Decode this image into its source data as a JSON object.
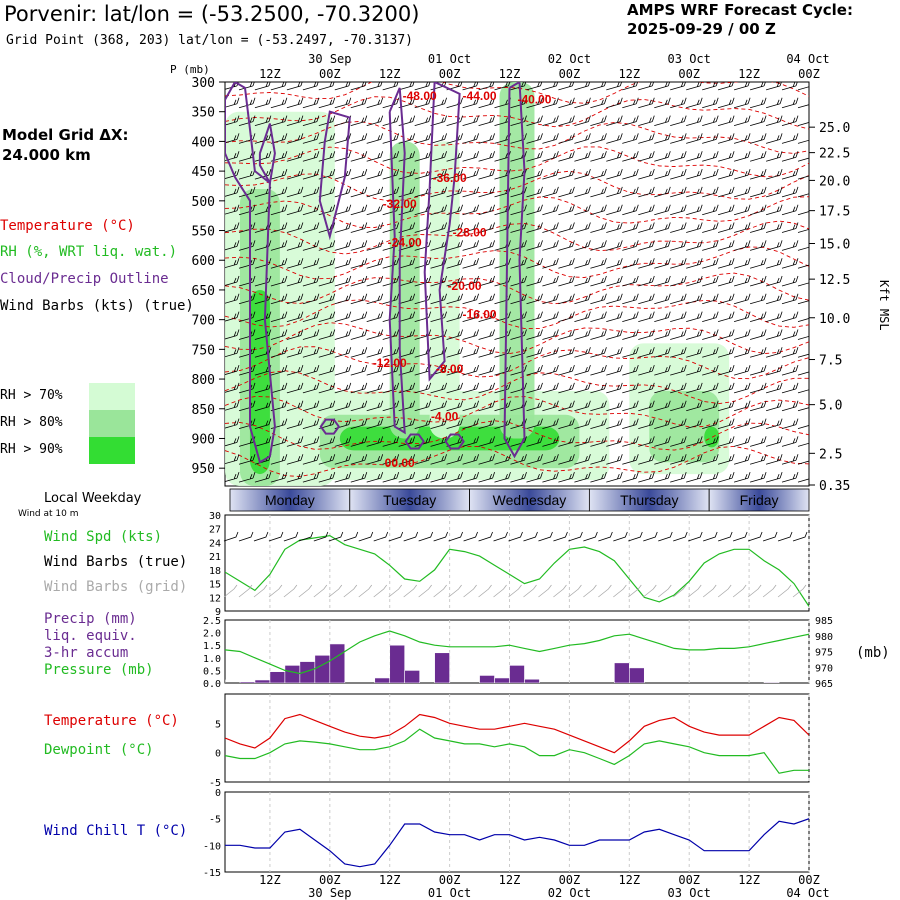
{
  "header": {
    "title": "Porvenir:  lat/lon = (-53.2500, -70.3200)",
    "grid_point": "Grid Point (368, 203) lat/lon = (-53.2497, -70.3137)",
    "cycle_label": "AMPS WRF Forecast Cycle:",
    "cycle_value": "2025-09-29 / 00  Z",
    "grid_dx_label": "Model Grid ΔX:",
    "grid_dx_value": " 24.000 km"
  },
  "legend": {
    "temperature": "Temperature (°C)",
    "rh": "RH (%, WRT liq. wat.)",
    "cloud": "Cloud/Precip Outline",
    "wind": "Wind Barbs (kts) (true)",
    "rh70": "RH > 70%",
    "rh80": "RH > 80%",
    "rh90": "RH > 90%",
    "local_weekday": "Local Weekday",
    "wind_at": "Wind at 10 m",
    "wind_spd": "Wind Spd (kts)",
    "wind_barbs_true": "Wind Barbs (true)",
    "wind_barbs_grid": "Wind Barbs (grid)",
    "precip1": "Precip (mm)",
    "precip2": "liq. equiv.",
    "precip3": "3-hr accum",
    "pressure": "Pressure (mb)",
    "pressure_unit": "(mb)",
    "temp2": "Temperature (°C)",
    "dewpoint": "Dewpoint (°C)",
    "windchill": "Wind Chill T (°C)",
    "kft": "Kft MSL",
    "p_axis_title": "P (mb)"
  },
  "colors": {
    "temperature": "#dd0000",
    "rh": "#22bb22",
    "cloud": "#6a2c91",
    "rh70": "#d4fbd4",
    "rh80": "#9ae59a",
    "rh90": "#33dd33",
    "pressure": "#22bb22",
    "precip": "#6a2c91",
    "windchill": "#0000aa",
    "dayband": "#3a4a9a"
  },
  "chart_data": [
    {
      "id": "cross-section",
      "type": "heatmap",
      "ylabel": "P (mb)",
      "y2label": "Kft MSL",
      "pressure_ticks": [
        "300",
        "350",
        "400",
        "450",
        "500",
        "550",
        "600",
        "650",
        "700",
        "750",
        "800",
        "850",
        "900",
        "950"
      ],
      "pressure_values": [
        300,
        350,
        400,
        450,
        500,
        550,
        600,
        650,
        700,
        750,
        800,
        850,
        900,
        950
      ],
      "ylim": [
        300,
        980
      ],
      "height_ticks": [
        "25.0",
        "22.5",
        "20.0",
        "17.5",
        "15.0",
        "12.5",
        "10.0",
        "7.5",
        "5.0",
        "2.5",
        "0.35"
      ],
      "height_values": [
        25.0,
        22.5,
        20.0,
        17.5,
        15.0,
        12.5,
        10.0,
        7.5,
        5.0,
        2.5,
        0.35
      ],
      "time_top_hours": [
        "12Z",
        "00Z",
        "12Z",
        "00Z",
        "12Z",
        "00Z",
        "12Z",
        "00Z",
        "12Z",
        "00Z"
      ],
      "time_top_hour_values": [
        12,
        24,
        36,
        48,
        60,
        72,
        84,
        96,
        108,
        120
      ],
      "time_top_dates": [
        "30 Sep",
        "01 Oct",
        "02 Oct",
        "03 Oct",
        "04 Oct"
      ],
      "time_top_date_values": [
        24,
        48,
        72,
        96,
        120
      ],
      "xlim": [
        3,
        120
      ],
      "temperature_labels": [
        {
          "text": "-48.00",
          "t": 42,
          "p": 330
        },
        {
          "text": "-44.00",
          "t": 54,
          "p": 330
        },
        {
          "text": "-40.00",
          "t": 65,
          "p": 336
        },
        {
          "text": "-36.00",
          "t": 48,
          "p": 468
        },
        {
          "text": "-32.00",
          "t": 38,
          "p": 512
        },
        {
          "text": "-28.00",
          "t": 52,
          "p": 560
        },
        {
          "text": "-24.00",
          "t": 39,
          "p": 577
        },
        {
          "text": "-20.00",
          "t": 51,
          "p": 650
        },
        {
          "text": "-16.00",
          "t": 54,
          "p": 698
        },
        {
          "text": "-12.00",
          "t": 36,
          "p": 780
        },
        {
          "text": "-8.00",
          "t": 48,
          "p": 790
        },
        {
          "text": "-4.00",
          "t": 47,
          "p": 870
        },
        {
          "text": "00.00",
          "t": 38,
          "p": 948
        }
      ],
      "rh_regions": [
        {
          "level": 70,
          "t0": 3,
          "t1": 25,
          "p0": 350,
          "p1": 980
        },
        {
          "level": 80,
          "t0": 6,
          "t1": 14,
          "p0": 480,
          "p1": 980
        },
        {
          "level": 90,
          "t0": 8,
          "t1": 12,
          "p0": 650,
          "p1": 960
        },
        {
          "level": 70,
          "t0": 19,
          "t1": 80,
          "p0": 820,
          "p1": 970
        },
        {
          "level": 80,
          "t0": 22,
          "t1": 74,
          "p0": 860,
          "p1": 950
        },
        {
          "level": 90,
          "t0": 26,
          "t1": 70,
          "p0": 880,
          "p1": 920
        },
        {
          "level": 80,
          "t0": 36,
          "t1": 42,
          "p0": 400,
          "p1": 900
        },
        {
          "level": 70,
          "t0": 44,
          "t1": 50,
          "p0": 400,
          "p1": 900
        },
        {
          "level": 80,
          "t0": 58,
          "t1": 65,
          "p0": 300,
          "p1": 900
        },
        {
          "level": 70,
          "t0": 84,
          "t1": 104,
          "p0": 740,
          "p1": 960
        },
        {
          "level": 80,
          "t0": 88,
          "t1": 102,
          "p0": 820,
          "p1": 940
        },
        {
          "level": 90,
          "t0": 99,
          "t1": 102,
          "p0": 880,
          "p1": 915
        }
      ],
      "wind_levels": [
        310,
        340,
        370,
        400,
        430,
        460,
        490,
        520,
        550,
        580,
        610,
        640,
        670,
        700,
        730,
        760,
        790,
        820,
        850,
        880,
        910,
        940,
        970
      ],
      "cloud_outlines": [
        [
          [
            3,
            330
          ],
          [
            5,
            300
          ],
          [
            7,
            310
          ],
          [
            8,
            380
          ],
          [
            9,
            450
          ],
          [
            12,
            470
          ],
          [
            11,
            700
          ],
          [
            13,
            880
          ],
          [
            12,
            930
          ],
          [
            10,
            940
          ],
          [
            8,
            880
          ],
          [
            8,
            500
          ],
          [
            5,
            460
          ],
          [
            3,
            420
          ],
          [
            3,
            330
          ]
        ],
        [
          [
            10,
            420
          ],
          [
            12,
            370
          ],
          [
            13,
            420
          ],
          [
            12,
            470
          ],
          [
            10,
            440
          ],
          [
            10,
            420
          ]
        ],
        [
          [
            23,
            400
          ],
          [
            24,
            350
          ],
          [
            28,
            360
          ],
          [
            27,
            460
          ],
          [
            24,
            560
          ],
          [
            22,
            500
          ],
          [
            23,
            400
          ]
        ],
        [
          [
            36,
            350
          ],
          [
            38,
            310
          ],
          [
            39,
            420
          ],
          [
            38,
            600
          ],
          [
            38,
            750
          ],
          [
            39,
            890
          ],
          [
            37,
            880
          ],
          [
            36,
            700
          ],
          [
            37,
            560
          ],
          [
            36,
            350
          ]
        ],
        [
          [
            45,
            300
          ],
          [
            50,
            320
          ],
          [
            49,
            460
          ],
          [
            48,
            540
          ],
          [
            46,
            650
          ],
          [
            47,
            770
          ],
          [
            44,
            800
          ],
          [
            43,
            620
          ],
          [
            44,
            480
          ],
          [
            45,
            300
          ]
        ],
        [
          [
            60,
            310
          ],
          [
            62,
            300
          ],
          [
            63,
            450
          ],
          [
            62,
            600
          ],
          [
            63,
            900
          ],
          [
            61,
            930
          ],
          [
            59,
            900
          ],
          [
            60,
            310
          ]
        ]
      ],
      "cloud_loops": [
        {
          "t": 24,
          "p": 880
        },
        {
          "t": 41,
          "p": 905
        },
        {
          "t": 49,
          "p": 905
        }
      ]
    },
    {
      "id": "weekday-band",
      "type": "table",
      "days": [
        "Monday",
        "Tuesday",
        "Wednesday",
        "Thursday",
        "Friday"
      ],
      "day_starts": [
        4,
        28,
        52,
        76,
        100
      ]
    },
    {
      "id": "wind-speed",
      "type": "line",
      "title": "",
      "ylabel": "Wind Spd (kts)",
      "ylim": [
        9,
        30
      ],
      "y_ticks": [
        "30",
        "27",
        "24",
        "21",
        "18",
        "15",
        "12",
        "9"
      ],
      "y_tick_values": [
        30,
        27,
        24,
        21,
        18,
        15,
        12,
        9
      ],
      "x": [
        3,
        6,
        9,
        12,
        15,
        18,
        21,
        24,
        27,
        30,
        33,
        36,
        39,
        42,
        45,
        48,
        51,
        54,
        57,
        60,
        63,
        66,
        69,
        72,
        75,
        78,
        81,
        84,
        87,
        90,
        93,
        96,
        99,
        102,
        105,
        108,
        111,
        114,
        117,
        120
      ],
      "values": [
        17.5,
        15.5,
        13.5,
        17,
        22.5,
        24.5,
        25,
        25.5,
        23.5,
        22.5,
        21.5,
        19,
        16,
        15.5,
        18,
        22.5,
        22,
        21,
        19,
        17,
        15,
        16,
        19.5,
        22.5,
        23,
        22,
        20,
        16,
        12,
        11,
        12.5,
        15.5,
        19.5,
        21.5,
        22.5,
        22.5,
        20,
        18,
        15,
        10
      ]
    },
    {
      "id": "precip-pressure",
      "type": "bar",
      "ylabel": "Precip (mm)",
      "y2label": "Pressure (mb)",
      "ylim": [
        0,
        2.5
      ],
      "y_ticks": [
        "2.5",
        "2.0",
        "1.5",
        "1.0",
        "0.5",
        "0.0"
      ],
      "y_tick_values": [
        2.5,
        2.0,
        1.5,
        1.0,
        0.5,
        0.0
      ],
      "y2lim": [
        965,
        985
      ],
      "y2_ticks": [
        "985",
        "980",
        "975",
        "970",
        "965"
      ],
      "y2_tick_values": [
        985,
        980,
        975,
        970,
        965
      ],
      "bars_x": [
        3,
        9,
        12,
        15,
        18,
        21,
        24,
        27,
        36,
        39,
        42,
        45,
        48,
        51,
        54,
        57,
        60,
        63,
        66,
        69,
        72,
        75,
        78,
        81,
        84,
        87,
        90,
        93,
        96,
        99,
        102,
        105,
        108,
        111,
        114,
        117,
        120
      ],
      "bars": [
        0.12,
        0.05,
        0.12,
        0.45,
        0.7,
        0.85,
        1.1,
        1.55,
        0.2,
        1.5,
        0.5,
        0,
        1.2,
        0,
        0,
        0.3,
        0.2,
        0.7,
        0.15,
        0,
        0,
        0,
        0,
        0,
        0.8,
        0.6,
        0,
        0,
        0,
        0,
        0,
        0,
        0,
        0,
        0.03,
        0,
        0
      ],
      "pressure_x": [
        3,
        6,
        9,
        12,
        15,
        18,
        21,
        24,
        27,
        30,
        33,
        36,
        39,
        42,
        45,
        48,
        51,
        54,
        57,
        60,
        63,
        66,
        69,
        72,
        75,
        78,
        81,
        84,
        87,
        90,
        93,
        96,
        99,
        102,
        105,
        108,
        111,
        114,
        117,
        120
      ],
      "pressure": [
        975.5,
        975,
        973,
        971,
        969,
        968,
        969.5,
        972,
        975,
        978,
        980,
        981.5,
        980,
        978,
        977,
        976.5,
        976.5,
        976.5,
        976.5,
        977,
        976,
        975,
        976,
        977,
        977.5,
        978.5,
        980,
        980.5,
        979,
        977.5,
        976,
        975.5,
        975.5,
        976,
        976,
        976.5,
        977.5,
        978.5,
        979.5,
        980.5
      ]
    },
    {
      "id": "temp-dewpoint",
      "type": "line",
      "ylim": [
        -5,
        10
      ],
      "y_ticks": [
        "5",
        "0",
        "-5"
      ],
      "y_tick_values": [
        5,
        0,
        -5
      ],
      "x": [
        3,
        6,
        9,
        12,
        15,
        18,
        21,
        24,
        27,
        30,
        33,
        36,
        39,
        42,
        45,
        48,
        51,
        54,
        57,
        60,
        63,
        66,
        69,
        72,
        75,
        78,
        81,
        84,
        87,
        90,
        93,
        96,
        99,
        102,
        105,
        108,
        111,
        114,
        117,
        120
      ],
      "series": [
        {
          "name": "Temperature",
          "values": [
            2.5,
            1.5,
            0.8,
            2.5,
            5.8,
            6.5,
            5.5,
            4.5,
            3.5,
            2.8,
            2.5,
            3,
            4.5,
            6.5,
            6,
            5,
            4.5,
            4,
            4,
            4.5,
            5,
            4.5,
            4,
            3,
            2,
            1,
            0,
            2,
            4.5,
            5.5,
            6,
            4.5,
            3.5,
            3,
            3,
            3,
            4.5,
            6,
            5.5,
            3
          ]
        },
        {
          "name": "Dewpoint",
          "values": [
            -0.5,
            -1,
            -1,
            0,
            1.5,
            2,
            1.8,
            1.5,
            1,
            0.5,
            0.5,
            1,
            2,
            4,
            2.5,
            2,
            1.5,
            1.5,
            1,
            1.5,
            1,
            -0.5,
            -0.5,
            0.5,
            0,
            -1,
            -2,
            -0.5,
            1.5,
            2,
            1.5,
            1,
            0,
            -0.5,
            -0.5,
            -0.5,
            0,
            -3.5,
            -3,
            -3
          ]
        }
      ]
    },
    {
      "id": "wind-chill",
      "type": "line",
      "ylim": [
        -15,
        0
      ],
      "y_ticks": [
        "0",
        "-5",
        "-10",
        "-15"
      ],
      "y_tick_values": [
        0,
        -5,
        -10,
        -15
      ],
      "x": [
        3,
        6,
        9,
        12,
        15,
        18,
        21,
        24,
        27,
        30,
        33,
        36,
        39,
        42,
        45,
        48,
        51,
        54,
        57,
        60,
        63,
        66,
        69,
        72,
        75,
        78,
        81,
        84,
        87,
        90,
        93,
        96,
        99,
        102,
        105,
        108,
        111,
        114,
        117,
        120
      ],
      "values": [
        -10,
        -10,
        -10.5,
        -10.5,
        -7.5,
        -7,
        -9,
        -11,
        -13.5,
        -14,
        -13.5,
        -10,
        -6,
        -6,
        -7.5,
        -8,
        -8,
        -9,
        -8,
        -8,
        -9,
        -8.5,
        -9,
        -10,
        -10,
        -9,
        -9,
        -9,
        -7.5,
        -7,
        -8,
        -9,
        -11,
        -11,
        -11,
        -11,
        -8,
        -5.5,
        -6,
        -5
      ]
    }
  ]
}
